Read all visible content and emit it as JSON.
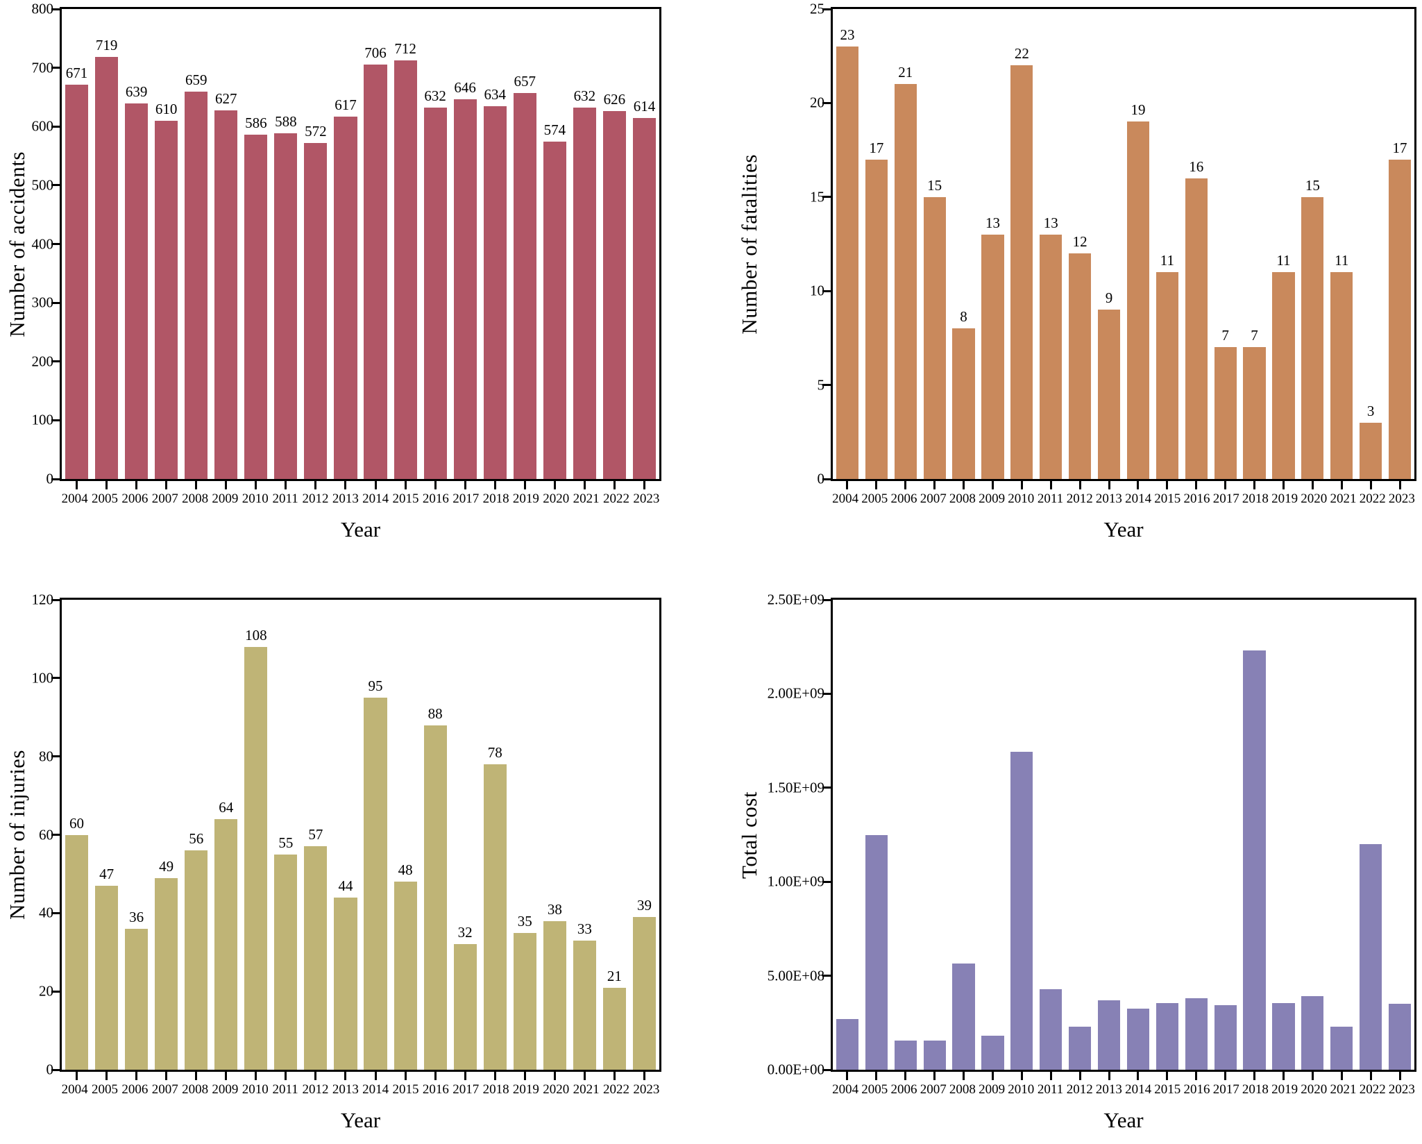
{
  "figure": {
    "background": "#ffffff",
    "layout": "2x2-grid"
  },
  "chart_data": [
    {
      "name": "accidents",
      "type": "bar",
      "xlabel": "Year",
      "ylabel": "Number of accidents",
      "bar_color": "#b15666",
      "ylim": [
        0,
        800
      ],
      "yticks": [
        0,
        100,
        200,
        300,
        400,
        500,
        600,
        700,
        800
      ],
      "ytick_labels": [
        "0",
        "100",
        "200",
        "300",
        "400",
        "500",
        "600",
        "700",
        "800"
      ],
      "categories": [
        "2004",
        "2005",
        "2006",
        "2007",
        "2008",
        "2009",
        "2010",
        "2011",
        "2012",
        "2013",
        "2014",
        "2015",
        "2016",
        "2017",
        "2018",
        "2019",
        "2020",
        "2021",
        "2022",
        "2023"
      ],
      "values": [
        671,
        719,
        639,
        610,
        659,
        627,
        586,
        588,
        572,
        617,
        706,
        712,
        632,
        646,
        634,
        657,
        574,
        632,
        626,
        614
      ],
      "value_labels": [
        "671",
        "719",
        "639",
        "610",
        "659",
        "627",
        "586",
        "588",
        "572",
        "617",
        "706",
        "712",
        "632",
        "646",
        "634",
        "657",
        "574",
        "632",
        "626",
        "614"
      ],
      "value_labels_visible": true,
      "grid": false,
      "legend": null
    },
    {
      "name": "fatalities",
      "type": "bar",
      "xlabel": "Year",
      "ylabel": "Number of fatalities",
      "bar_color": "#c9895c",
      "ylim": [
        0,
        25
      ],
      "yticks": [
        0,
        5,
        10,
        15,
        20,
        25
      ],
      "ytick_labels": [
        "0",
        "5",
        "10",
        "15",
        "20",
        "25"
      ],
      "categories": [
        "2004",
        "2005",
        "2006",
        "2007",
        "2008",
        "2009",
        "2010",
        "2011",
        "2012",
        "2013",
        "2014",
        "2015",
        "2016",
        "2017",
        "2018",
        "2019",
        "2020",
        "2021",
        "2022",
        "2023"
      ],
      "values": [
        23,
        17,
        21,
        15,
        8,
        13,
        22,
        13,
        12,
        9,
        19,
        11,
        16,
        7,
        7,
        11,
        15,
        11,
        3,
        17
      ],
      "value_labels": [
        "23",
        "17",
        "21",
        "15",
        "8",
        "13",
        "22",
        "13",
        "12",
        "9",
        "19",
        "11",
        "16",
        "7",
        "7",
        "11",
        "15",
        "11",
        "3",
        "17"
      ],
      "value_labels_visible": true,
      "grid": false,
      "legend": null
    },
    {
      "name": "injuries",
      "type": "bar",
      "xlabel": "Year",
      "ylabel": "Number of injuries",
      "bar_color": "#bfb476",
      "ylim": [
        0,
        120
      ],
      "yticks": [
        0,
        20,
        40,
        60,
        80,
        100,
        120
      ],
      "ytick_labels": [
        "0",
        "20",
        "40",
        "60",
        "80",
        "100",
        "120"
      ],
      "categories": [
        "2004",
        "2005",
        "2006",
        "2007",
        "2008",
        "2009",
        "2010",
        "2011",
        "2012",
        "2013",
        "2014",
        "2015",
        "2016",
        "2017",
        "2018",
        "2019",
        "2020",
        "2021",
        "2022",
        "2023"
      ],
      "values": [
        60,
        47,
        36,
        49,
        56,
        64,
        108,
        55,
        57,
        44,
        95,
        48,
        88,
        32,
        78,
        35,
        38,
        33,
        21,
        39
      ],
      "value_labels": [
        "60",
        "47",
        "36",
        "49",
        "56",
        "64",
        "108",
        "55",
        "57",
        "44",
        "95",
        "48",
        "88",
        "32",
        "78",
        "35",
        "38",
        "33",
        "21",
        "39"
      ],
      "value_labels_visible": true,
      "grid": false,
      "legend": null
    },
    {
      "name": "total-cost",
      "type": "bar",
      "xlabel": "Year",
      "ylabel": "Total cost",
      "bar_color": "#8781b5",
      "ylim": [
        0,
        2500000000
      ],
      "yticks": [
        0,
        500000000,
        1000000000,
        1500000000,
        2000000000,
        2500000000
      ],
      "ytick_labels": [
        "0.00E+00",
        "5.00E+08",
        "1.00E+09",
        "1.50E+09",
        "2.00E+09",
        "2.50E+09"
      ],
      "categories": [
        "2004",
        "2005",
        "2006",
        "2007",
        "2008",
        "2009",
        "2010",
        "2011",
        "2012",
        "2013",
        "2014",
        "2015",
        "2016",
        "2017",
        "2018",
        "2019",
        "2020",
        "2021",
        "2022",
        "2023"
      ],
      "values": [
        270000000,
        1250000000,
        155000000,
        155000000,
        565000000,
        180000000,
        1690000000,
        430000000,
        230000000,
        370000000,
        325000000,
        355000000,
        380000000,
        345000000,
        2230000000,
        355000000,
        390000000,
        230000000,
        1200000000,
        350000000
      ],
      "value_labels": [],
      "value_labels_visible": false,
      "grid": false,
      "legend": null
    }
  ]
}
